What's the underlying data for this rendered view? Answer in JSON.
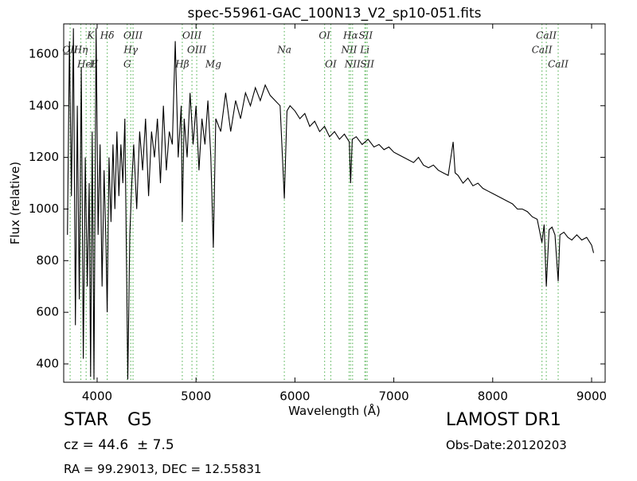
{
  "chart_data": {
    "type": "line",
    "title": "spec-55961-GAC_100N13_V2_sp10-051.fits",
    "x_label": "Wavelength (Å)",
    "y_label": "Flux (relative)",
    "xlim": [
      3662,
      9137
    ],
    "ylim": [
      329,
      1717
    ],
    "xticks": [
      4000,
      5000,
      6000,
      7000,
      8000,
      9000
    ],
    "yticks": [
      400,
      600,
      800,
      1000,
      1200,
      1400,
      1600
    ],
    "color": "#000000",
    "line_color": "#66bb66",
    "x": [
      3700,
      3720,
      3740,
      3760,
      3780,
      3800,
      3820,
      3840,
      3860,
      3880,
      3900,
      3920,
      3934,
      3950,
      3968,
      3990,
      4010,
      4030,
      4050,
      4070,
      4090,
      4102,
      4120,
      4140,
      4160,
      4180,
      4200,
      4220,
      4240,
      4260,
      4280,
      4300,
      4310,
      4330,
      4350,
      4370,
      4400,
      4430,
      4460,
      4490,
      4520,
      4550,
      4580,
      4610,
      4640,
      4670,
      4700,
      4730,
      4760,
      4790,
      4820,
      4850,
      4861,
      4880,
      4910,
      4940,
      4970,
      5000,
      5030,
      5060,
      5090,
      5120,
      5150,
      5175,
      5200,
      5250,
      5300,
      5350,
      5400,
      5450,
      5500,
      5550,
      5600,
      5650,
      5700,
      5750,
      5800,
      5850,
      5893,
      5920,
      5950,
      6000,
      6050,
      6100,
      6150,
      6200,
      6250,
      6300,
      6350,
      6400,
      6450,
      6500,
      6550,
      6563,
      6580,
      6620,
      6680,
      6740,
      6800,
      6850,
      6900,
      6950,
      7000,
      7050,
      7100,
      7150,
      7200,
      7250,
      7300,
      7350,
      7400,
      7450,
      7500,
      7550,
      7600,
      7620,
      7650,
      7700,
      7750,
      7800,
      7850,
      7900,
      7950,
      8000,
      8050,
      8100,
      8150,
      8200,
      8250,
      8300,
      8350,
      8400,
      8450,
      8498,
      8520,
      8542,
      8570,
      8600,
      8630,
      8662,
      8680,
      8720,
      8760,
      8800,
      8850,
      8900,
      8950,
      9000,
      9020
    ],
    "values": [
      900,
      1650,
      1050,
      1700,
      550,
      1400,
      650,
      1550,
      420,
      1200,
      700,
      1100,
      350,
      1300,
      340,
      1700,
      900,
      1250,
      700,
      1150,
      850,
      600,
      1200,
      950,
      1250,
      1000,
      1300,
      1050,
      1250,
      1100,
      1350,
      700,
      340,
      900,
      1100,
      1250,
      1000,
      1300,
      1150,
      1350,
      1050,
      1300,
      1200,
      1350,
      1100,
      1400,
      1150,
      1300,
      1250,
      1650,
      1200,
      1400,
      950,
      1350,
      1200,
      1450,
      1250,
      1400,
      1150,
      1350,
      1250,
      1420,
      1200,
      850,
      1350,
      1300,
      1450,
      1300,
      1420,
      1350,
      1450,
      1400,
      1470,
      1420,
      1480,
      1440,
      1420,
      1400,
      1040,
      1380,
      1400,
      1380,
      1350,
      1370,
      1320,
      1340,
      1300,
      1320,
      1280,
      1300,
      1270,
      1290,
      1260,
      1100,
      1270,
      1280,
      1250,
      1270,
      1240,
      1250,
      1230,
      1240,
      1220,
      1210,
      1200,
      1190,
      1180,
      1200,
      1170,
      1160,
      1170,
      1150,
      1140,
      1130,
      1260,
      1140,
      1130,
      1100,
      1120,
      1090,
      1100,
      1080,
      1070,
      1060,
      1050,
      1040,
      1030,
      1020,
      1000,
      1000,
      990,
      970,
      960,
      870,
      940,
      700,
      920,
      930,
      900,
      720,
      900,
      910,
      890,
      880,
      900,
      880,
      890,
      860,
      830
    ],
    "spectral_lines": [
      {
        "label": "OII",
        "wavelength": 3727
      },
      {
        "label": "Hη",
        "wavelength": 3835
      },
      {
        "label": "HeI",
        "wavelength": 3889
      },
      {
        "label": "K",
        "wavelength": 3934
      },
      {
        "label": "H",
        "wavelength": 3968
      },
      {
        "label": "Hδ",
        "wavelength": 4102
      },
      {
        "label": "G",
        "wavelength": 4304
      },
      {
        "label": "Hγ",
        "wavelength": 4340
      },
      {
        "label": "OIII",
        "wavelength": 4363
      },
      {
        "label": "Hβ",
        "wavelength": 4861
      },
      {
        "label": "OIII",
        "wavelength": 4959
      },
      {
        "label": "OIII",
        "wavelength": 5007
      },
      {
        "label": "Mg",
        "wavelength": 5175
      },
      {
        "label": "Na",
        "wavelength": 5893
      },
      {
        "label": "OI",
        "wavelength": 6300
      },
      {
        "label": "OI",
        "wavelength": 6363
      },
      {
        "label": "NII",
        "wavelength": 6548
      },
      {
        "label": "Hα",
        "wavelength": 6563
      },
      {
        "label": "NII",
        "wavelength": 6583
      },
      {
        "label": "Li",
        "wavelength": 6707
      },
      {
        "label": "SII",
        "wavelength": 6716
      },
      {
        "label": "SII",
        "wavelength": 6731
      },
      {
        "label": "CaII",
        "wavelength": 8498
      },
      {
        "label": "CaII",
        "wavelength": 8542
      },
      {
        "label": "CaII",
        "wavelength": 8662
      }
    ]
  },
  "info": {
    "object_class": "STAR",
    "subclass": "G5",
    "redshift": "cz = 44.6  ± 7.5",
    "coordinates": "RA = 99.29013, DEC = 12.55831",
    "survey": "LAMOST DR1",
    "obs_date": "Obs-Date:20120203"
  }
}
